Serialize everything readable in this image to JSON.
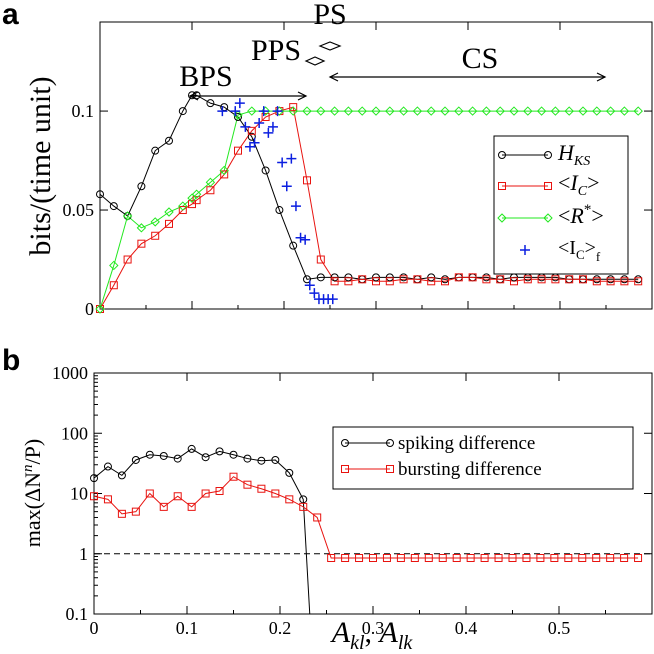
{
  "panel_a": {
    "letter": "a",
    "ylabel": "bits/(time unit)",
    "regions": {
      "bps": "BPS",
      "pps": "PPS",
      "ps": "PS",
      "cs": "CS"
    },
    "legend": {
      "hks": {
        "main": "H",
        "sub": "KS"
      },
      "ic": {
        "pre": "<",
        "main": "I",
        "sub": "C",
        "post": ">"
      },
      "rstar": {
        "pre": "<",
        "main": "R",
        "sup": "*",
        "post": ">"
      },
      "icf": {
        "pre": "<",
        "main": "I",
        "sub1": "C",
        "post": ">",
        "sub2": "f"
      }
    }
  },
  "panel_b": {
    "letter": "b",
    "ylabel_pre": "max(ΔN",
    "ylabel_sup": "n",
    "ylabel_post": "/P)",
    "legend": {
      "spiking": "spiking difference",
      "bursting": "bursting difference"
    }
  },
  "xlabel": {
    "a1": "A",
    "s1": "kl",
    "comma": ", ",
    "a2": "A",
    "s2": "lk"
  },
  "colors": {
    "black": "#000000",
    "red": "#e8130f",
    "green": "#22e81f",
    "blue": "#0b1fe0"
  },
  "chart_data": [
    {
      "type": "line",
      "title": "a",
      "ylabel": "bits/(time unit)",
      "xlim": [
        0,
        0.6
      ],
      "ylim": [
        0,
        0.145
      ],
      "yticks": [
        0,
        0.05,
        0.1
      ],
      "ytick_labels": [
        "0",
        "0.05",
        "0.1"
      ],
      "series": [
        {
          "name": "H_KS",
          "color": "#000000",
          "marker": "circle",
          "x": [
            0,
            0.015,
            0.03,
            0.045,
            0.06,
            0.075,
            0.09,
            0.1,
            0.105,
            0.12,
            0.135,
            0.15,
            0.165,
            0.18,
            0.195,
            0.21,
            0.225,
            0.24,
            0.255
          ],
          "y": [
            0.058,
            0.052,
            0.047,
            0.062,
            0.08,
            0.085,
            0.1,
            0.108,
            0.108,
            0.104,
            0.102,
            0.097,
            0.087,
            0.07,
            0.05,
            0.032,
            0.015,
            0.016,
            0.016
          ]
        },
        {
          "name": "<I_C>",
          "color": "#e8130f",
          "marker": "square",
          "x": [
            0,
            0.015,
            0.03,
            0.045,
            0.06,
            0.075,
            0.09,
            0.1,
            0.105,
            0.12,
            0.135,
            0.15,
            0.165,
            0.18,
            0.195,
            0.21,
            0.225,
            0.24,
            0.255
          ],
          "y": [
            0,
            0.012,
            0.025,
            0.033,
            0.037,
            0.043,
            0.05,
            0.053,
            0.055,
            0.06,
            0.068,
            0.08,
            0.09,
            0.097,
            0.1,
            0.102,
            0.065,
            0.025,
            0.014
          ]
        },
        {
          "name": "<R*>",
          "color": "#22e81f",
          "marker": "diamond",
          "x": [
            0,
            0.015,
            0.03,
            0.045,
            0.06,
            0.075,
            0.09,
            0.1,
            0.105,
            0.12,
            0.135,
            0.15,
            0.165,
            0.18,
            0.195,
            0.21,
            0.225,
            0.24,
            0.255
          ],
          "y": [
            0,
            0.022,
            0.047,
            0.041,
            0.044,
            0.049,
            0.052,
            0.056,
            0.058,
            0.064,
            0.07,
            0.098,
            0.1,
            0.1,
            0.1,
            0.1,
            0.1,
            0.1,
            0.1
          ]
        },
        {
          "name": "<I_C>_f",
          "color": "#0b1fe0",
          "marker": "plus",
          "x": [
            0.133,
            0.147,
            0.152,
            0.158,
            0.163,
            0.168,
            0.173,
            0.178,
            0.183,
            0.188,
            0.193,
            0.198,
            0.203,
            0.208,
            0.213,
            0.218,
            0.223,
            0.228,
            0.233,
            0.238,
            0.243,
            0.248,
            0.253
          ],
          "y": [
            0.1,
            0.1,
            0.104,
            0.092,
            0.082,
            0.084,
            0.094,
            0.1,
            0.089,
            0.092,
            0.1,
            0.074,
            0.062,
            0.076,
            0.052,
            0.036,
            0.035,
            0.012,
            0.008,
            0.005,
            0.005,
            0.005,
            0.005
          ]
        }
      ],
      "tail_x_start": 0.255,
      "tail_values": {
        "H_KS": [
          0.016,
          0.015,
          0.016,
          0.016,
          0.016,
          0.015,
          0.016,
          0.015,
          0.016,
          0.016,
          0.016,
          0.015,
          0.016,
          0.016,
          0.016,
          0.016,
          0.015,
          0.015,
          0.015,
          0.015,
          0.015,
          0.015
        ],
        "<I_C>": [
          0.014,
          0.015,
          0.014,
          0.014,
          0.015,
          0.015,
          0.014,
          0.014,
          0.016,
          0.016,
          0.015,
          0.015,
          0.014,
          0.015,
          0.015,
          0.015,
          0.015,
          0.015,
          0.014,
          0.014,
          0.014,
          0.014
        ],
        "<R*>": [
          0.1,
          0.1,
          0.1,
          0.1,
          0.1,
          0.1,
          0.1,
          0.1,
          0.1,
          0.1,
          0.1,
          0.1,
          0.1,
          0.1,
          0.1,
          0.1,
          0.1,
          0.1,
          0.1,
          0.1,
          0.1,
          0.1
        ]
      }
    },
    {
      "type": "line",
      "title": "b",
      "yscale": "log",
      "ylim": [
        0.1,
        1000
      ],
      "xlim": [
        0,
        0.6
      ],
      "yticks": [
        0.1,
        1,
        10,
        100,
        1000
      ],
      "ytick_labels": [
        "0.1",
        "1",
        "10",
        "100",
        "1000"
      ],
      "xticks": [
        0,
        0.1,
        0.2,
        0.3,
        0.4,
        0.5
      ],
      "xtick_labels": [
        "0",
        "0.1",
        "0.2",
        "0.3",
        "0.4",
        "0.5"
      ],
      "reference_line": 1,
      "series": [
        {
          "name": "spiking difference",
          "color": "#000000",
          "marker": "circle",
          "x": [
            0,
            0.015,
            0.03,
            0.045,
            0.06,
            0.075,
            0.09,
            0.105,
            0.12,
            0.135,
            0.15,
            0.165,
            0.18,
            0.195,
            0.21,
            0.225
          ],
          "y": [
            18,
            28,
            20,
            36,
            44,
            42,
            38,
            55,
            40,
            50,
            44,
            38,
            35,
            36,
            22,
            8
          ]
        },
        {
          "name": "bursting difference",
          "color": "#e8130f",
          "marker": "square",
          "x": [
            0,
            0.015,
            0.03,
            0.045,
            0.06,
            0.075,
            0.09,
            0.105,
            0.12,
            0.135,
            0.15,
            0.165,
            0.18,
            0.195,
            0.21,
            0.225,
            0.24,
            0.255,
            0.27,
            0.285,
            0.3,
            0.315,
            0.33,
            0.345,
            0.36,
            0.375,
            0.39,
            0.405,
            0.42,
            0.435,
            0.45,
            0.465,
            0.48,
            0.495,
            0.51,
            0.525,
            0.54,
            0.555,
            0.57,
            0.585
          ],
          "y": [
            9,
            8,
            4.6,
            5,
            10,
            6,
            9,
            6,
            10,
            11,
            19,
            14,
            12,
            10,
            8,
            6,
            4,
            0.85,
            0.85,
            0.85,
            0.85,
            0.85,
            0.85,
            0.85,
            0.85,
            0.85,
            0.85,
            0.85,
            0.85,
            0.85,
            0.85,
            0.85,
            0.85,
            0.85,
            0.85,
            0.85,
            0.85,
            0.85,
            0.85,
            0.85
          ]
        }
      ],
      "spiking_drop_to_x": 0.232
    }
  ]
}
